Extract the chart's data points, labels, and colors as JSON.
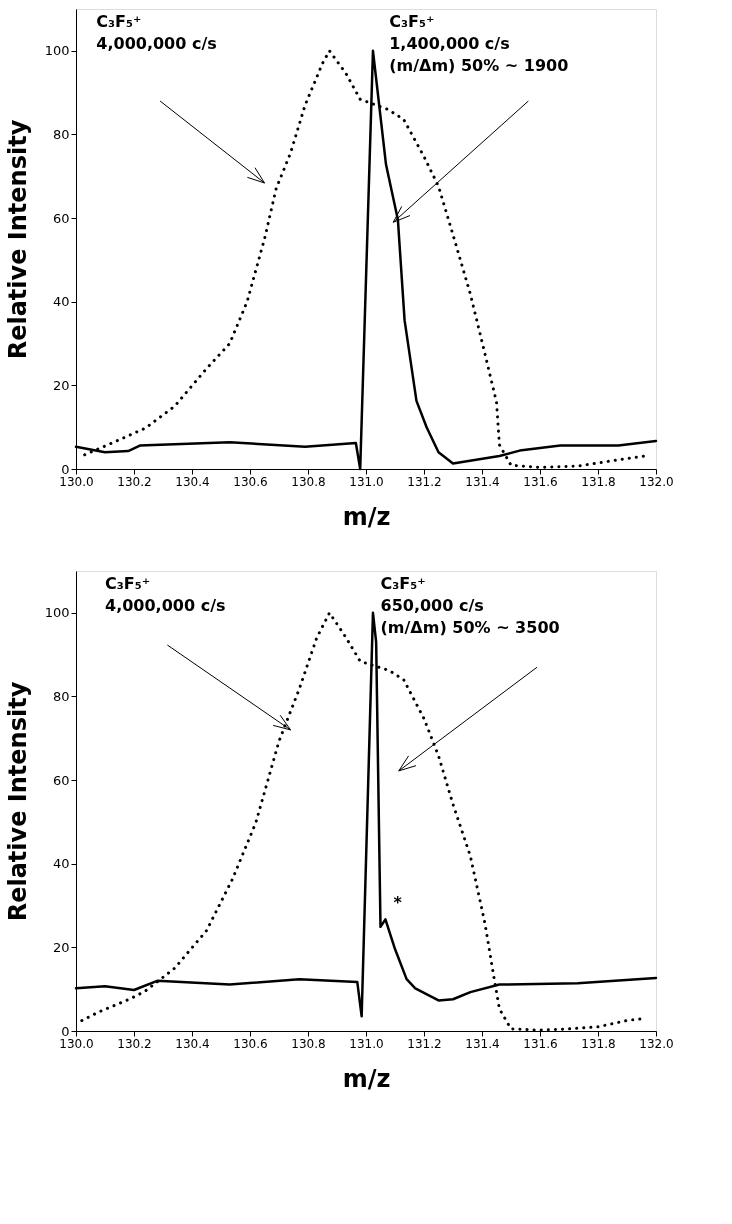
{
  "chart_data": [
    {
      "type": "line",
      "xlabel": "m/z",
      "ylabel": "Relative Intensity",
      "xlim": [
        130,
        132
      ],
      "ylim": [
        0,
        110
      ],
      "xticks": [
        {
          "value": 130,
          "label": "130.0"
        },
        130.2,
        130.4,
        130.6,
        130.8,
        {
          "value": 131,
          "label": "131.0"
        },
        131.2,
        131.4,
        131.6,
        131.8,
        {
          "value": 132,
          "label": "132.0"
        }
      ],
      "yticks": [
        0,
        20,
        40,
        60,
        80,
        100
      ],
      "grid": false,
      "marker": "none",
      "series": [
        {
          "color": "#000000",
          "line_style": "dotted",
          "x": [
            130.03,
            130.14,
            130.24,
            130.34,
            130.45,
            130.53,
            130.59,
            130.65,
            130.69,
            130.74,
            130.79,
            130.85,
            130.874,
            130.93,
            130.98,
            131.075,
            131.13,
            131.2,
            131.25,
            131.3,
            131.36,
            131.41,
            131.45,
            131.46,
            131.5,
            131.6,
            131.73,
            131.87,
            131.96
          ],
          "values": [
            3.4,
            6.7,
            9.8,
            15,
            24,
            30,
            40,
            55,
            67,
            75.6,
            87,
            97,
            100,
            94.7,
            88.4,
            86,
            83.6,
            74.7,
            67.6,
            56,
            41.8,
            27.6,
            16,
            5.8,
            0.9,
            0.4,
            0.7,
            2.2,
            3.1
          ]
        },
        {
          "color": "#000000",
          "line_style": "solid",
          "x": [
            130.0,
            130.1,
            130.18,
            130.22,
            130.53,
            130.79,
            130.965,
            130.98,
            131.024,
            131.069,
            131.11,
            131.133,
            131.174,
            131.209,
            131.25,
            131.3,
            131.46,
            131.53,
            131.67,
            131.87,
            132.0
          ],
          "values": [
            5.3,
            4,
            4.3,
            5.6,
            6.4,
            5.3,
            6.2,
            0,
            100,
            72.8,
            59.6,
            35.6,
            16.3,
            10,
            4,
            1.3,
            3.1,
            4.4,
            5.6,
            5.6,
            6.7
          ]
        }
      ],
      "annotations": [
        "C₃F₅⁺\n4,000,000 c/s",
        "C₃F₅⁺\n1,400,000 c/s\n(m/Δm) 50% ~ 1900"
      ]
    },
    {
      "type": "line",
      "xlabel": "m/z",
      "ylabel": "Relative Intensity",
      "xlim": [
        130,
        132
      ],
      "ylim": [
        0,
        110
      ],
      "xticks": [
        {
          "value": 130,
          "label": "130.0"
        },
        130.2,
        130.4,
        130.6,
        130.8,
        {
          "value": 131,
          "label": "131.0"
        },
        131.2,
        131.4,
        131.6,
        131.8,
        {
          "value": 132,
          "label": "132.0"
        }
      ],
      "yticks": [
        0,
        20,
        40,
        60,
        80,
        100
      ],
      "grid": false,
      "marker": "none",
      "series": [
        {
          "color": "#000000",
          "line_style": "dotted",
          "x": [
            130.02,
            130.08,
            130.19,
            130.24,
            130.34,
            130.45,
            130.54,
            130.62,
            130.7,
            130.77,
            130.83,
            130.874,
            130.93,
            130.98,
            131.08,
            131.13,
            131.2,
            131.25,
            131.3,
            131.36,
            131.41,
            131.44,
            131.46,
            131.5,
            131.6,
            131.7,
            131.8,
            131.9,
            131.96
          ],
          "values": [
            2.5,
            4.6,
            7.8,
            9.6,
            15,
            24,
            36.4,
            49.8,
            69.3,
            81.8,
            94,
            100,
            94.2,
            88.4,
            86.2,
            84,
            74.7,
            65.8,
            54.2,
            41.8,
            25.8,
            13.3,
            5.3,
            0.5,
            0.2,
            0.5,
            1,
            2.5,
            3
          ]
        },
        {
          "color": "#000000",
          "line_style": "solid",
          "x": [
            130.0,
            130.1,
            130.2,
            130.28,
            130.53,
            130.77,
            130.97,
            130.985,
            131.024,
            131.035,
            131.05,
            131.067,
            131.1,
            131.14,
            131.17,
            131.25,
            131.3,
            131.36,
            131.46,
            131.73,
            132.0
          ],
          "values": [
            10.2,
            10.7,
            9.8,
            12,
            11.1,
            12.4,
            11.7,
            3.5,
            100,
            93,
            24.9,
            26.7,
            19.6,
            12.4,
            10.2,
            7.3,
            7.6,
            9.3,
            11.1,
            11.4,
            12.7
          ]
        }
      ],
      "annotations": [
        "C₃F₅⁺\n4,000,000 c/s",
        "C₃F₅⁺\n650,000 c/s\n(m/Δm) 50% ~ 3500",
        {
          "text": "*",
          "x": 131.067,
          "y": 26.7
        }
      ]
    }
  ]
}
